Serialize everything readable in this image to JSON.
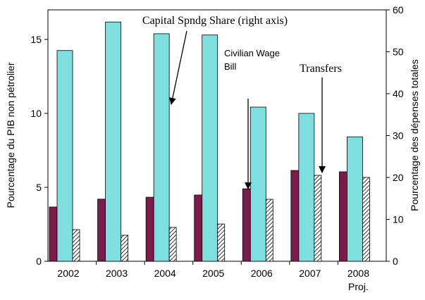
{
  "chart_data": {
    "type": "bar",
    "categories": [
      "2002",
      "2003",
      "2004",
      "2005",
      "2006",
      "2007",
      "2008"
    ],
    "category_note": "Proj.",
    "ylabel": "Pourcentage du PIB non pétrolier",
    "y2label": "Pourcentage des dépenses totales",
    "ylim": [
      0,
      17
    ],
    "yticks": [
      0,
      5,
      10,
      15
    ],
    "y2lim": [
      0,
      60
    ],
    "y2ticks": [
      0,
      10,
      20,
      30,
      40,
      50,
      60
    ],
    "series": [
      {
        "color": "#7b1c4a",
        "values": [
          3.67,
          4.2,
          4.33,
          4.48,
          4.9,
          6.14,
          6.05
        ]
      },
      {
        "color": "#7fdfe0",
        "axis": "y2",
        "values": [
          50.3,
          57.1,
          54.3,
          54.0,
          36.8,
          35.3,
          29.7
        ]
      },
      {
        "color": "#ffffff",
        "pattern": "hatch",
        "values": [
          2.14,
          1.76,
          2.29,
          2.52,
          4.19,
          5.81,
          5.67
        ]
      }
    ],
    "annotations": [
      {
        "text": "Capital Spndg Share (right axis)"
      },
      {
        "lines": [
          "Civilian Wage",
          "Bill"
        ]
      },
      {
        "text": "Transfers"
      }
    ]
  }
}
